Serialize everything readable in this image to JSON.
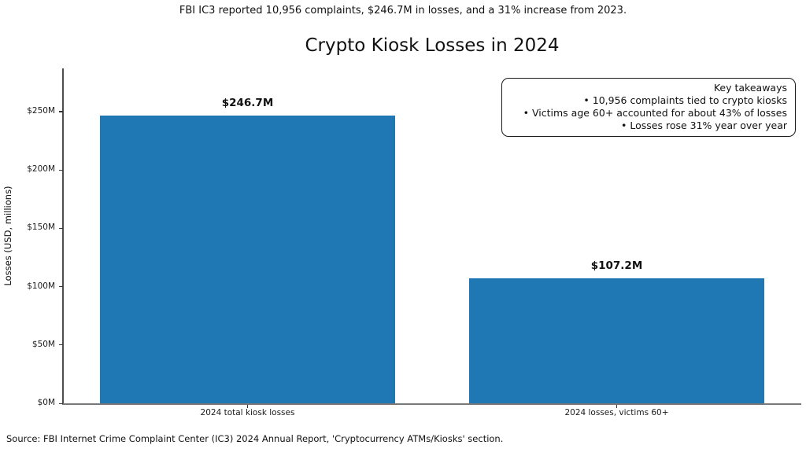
{
  "suptitle": "FBI IC3 reported 10,956 complaints, $246.7M in losses, and a 31% increase from 2023.",
  "annotation_box": {
    "title": "Key takeaways",
    "bullet_glyph": "•",
    "bullets": [
      "10,956 complaints tied to crypto kiosks",
      "Victims age 60+ accounted for about 43% of losses",
      "Losses rose 31% year over year"
    ]
  },
  "source": "Source: FBI Internet Crime Complaint Center (IC3) 2024 Annual Report, 'Cryptocurrency ATMs/Kiosks' section.",
  "chart_data": {
    "type": "bar",
    "title": "Crypto Kiosk Losses in 2024",
    "categories": [
      "2024 total kiosk losses",
      "2024 losses, victims 60+"
    ],
    "values": [
      246.7,
      107.2
    ],
    "value_labels": [
      "$246.7M",
      "$107.2M"
    ],
    "xlabel": "",
    "ylabel": "Losses (USD, millions)",
    "ylim": [
      0,
      287
    ],
    "ytick_values": [
      0,
      50,
      100,
      150,
      200,
      250
    ],
    "ytick_labels": [
      "$0M",
      "$50M",
      "$100M",
      "$150M",
      "$200M",
      "$250M"
    ],
    "bar_color": "#1f77b4",
    "bar_width_fraction": 0.8,
    "grid": false,
    "legend": "none"
  }
}
